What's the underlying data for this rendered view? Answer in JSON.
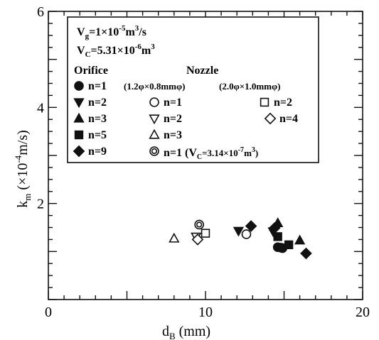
{
  "chart_data": {
    "type": "scatter",
    "xlabel": "d",
    "xlabel_sub": "B",
    "xlabel_unit": "(mm)",
    "ylabel": "k",
    "ylabel_sub": "m",
    "ylabel_unit": "(×10",
    "ylabel_exp": "-4",
    "ylabel_unit_end": "m/s)",
    "xlim": [
      0,
      20
    ],
    "ylim": [
      0,
      6
    ],
    "x_ticks": [
      "0",
      "10",
      "20"
    ],
    "y_ticks": [
      "2",
      "4",
      "6"
    ],
    "legend": {
      "placement": "top-left",
      "line1": "V",
      "line1_sub": "g",
      "line1_rest": "=1×10",
      "line1_exp": "-5",
      "line1_unit": "m",
      "line1_unit_exp": "3",
      "line1_end": "/s",
      "line2": "V",
      "line2_sub": "C",
      "line2_rest": "=5.31×10",
      "line2_exp": "-6",
      "line2_unit": "m",
      "line2_unit_exp": "3",
      "orifice_header": "Orifice",
      "nozzle_header": "Nozzle",
      "nozzle_dims_1": "(1.2φ×0.8mmφ)",
      "nozzle_dims_2": "(2.0φ×1.0mmφ)",
      "extra_label_a": "n=1 (V",
      "extra_label_sub": "C",
      "extra_label_b": "=3.14×10",
      "extra_label_exp": "-7",
      "extra_label_c": "m",
      "extra_label_exp2": "3",
      "extra_label_d": ")"
    },
    "series": [
      {
        "name": "n=1",
        "group": "orifice",
        "marker": "circle-filled",
        "points": [
          [
            14.6,
            1.09
          ],
          [
            14.9,
            1.07
          ],
          [
            14.8,
            1.08
          ]
        ]
      },
      {
        "name": "n=2",
        "group": "orifice",
        "marker": "tri-down-filled",
        "points": [
          [
            12.1,
            1.43
          ],
          [
            14.3,
            1.42
          ]
        ]
      },
      {
        "name": "n=3",
        "group": "orifice",
        "marker": "tri-up-filled",
        "points": [
          [
            14.6,
            1.59
          ],
          [
            16.0,
            1.23
          ]
        ]
      },
      {
        "name": "n=5",
        "group": "orifice",
        "marker": "square-filled",
        "points": [
          [
            14.6,
            1.31
          ],
          [
            15.3,
            1.14
          ]
        ]
      },
      {
        "name": "n=9",
        "group": "orifice",
        "marker": "diamond-filled",
        "points": [
          [
            12.9,
            1.53
          ],
          [
            14.4,
            1.49
          ],
          [
            16.4,
            0.96
          ]
        ]
      },
      {
        "name": "n=1",
        "group": "nozzle-1",
        "marker": "circle-open",
        "points": [
          [
            12.6,
            1.36
          ]
        ]
      },
      {
        "name": "n=2",
        "group": "nozzle-1",
        "marker": "tri-down-open",
        "points": [
          [
            9.4,
            1.31
          ]
        ]
      },
      {
        "name": "n=3",
        "group": "nozzle-1",
        "marker": "tri-up-open",
        "points": [
          [
            8.0,
            1.27
          ]
        ]
      },
      {
        "name": "n=2",
        "group": "nozzle-2",
        "marker": "square-open",
        "points": [
          [
            10.0,
            1.38
          ]
        ]
      },
      {
        "name": "n=4",
        "group": "nozzle-2",
        "marker": "diamond-open",
        "points": [
          [
            9.5,
            1.25
          ]
        ]
      },
      {
        "name": "n=1",
        "group": "nozzle-1-small-vc",
        "marker": "circle-double",
        "points": [
          [
            9.6,
            1.56
          ]
        ]
      }
    ]
  }
}
